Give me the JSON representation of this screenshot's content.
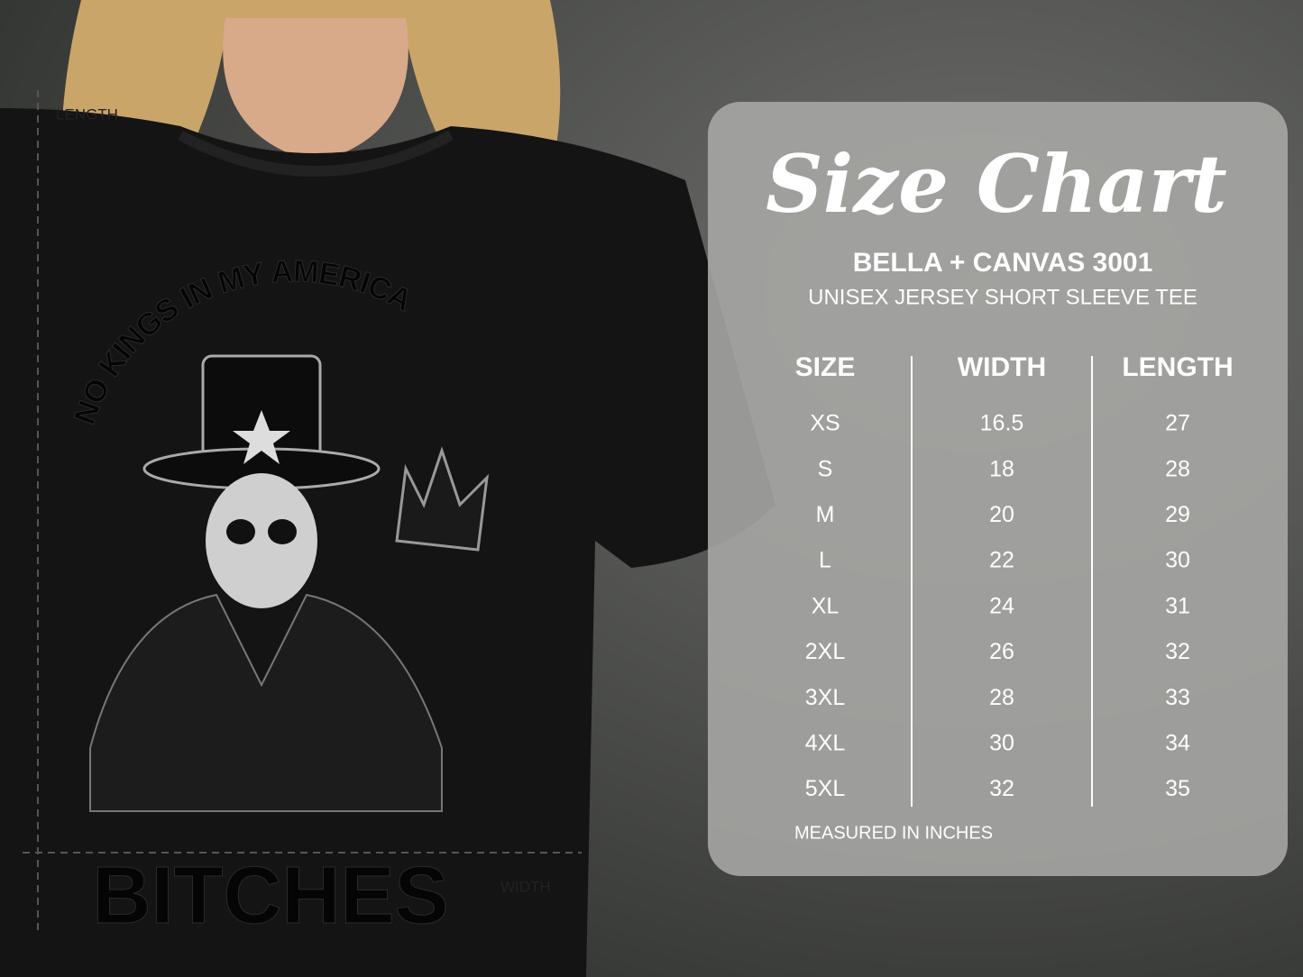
{
  "shirt": {
    "length_label": "LENGTH",
    "width_label": "WIDTH",
    "print_top": "NO KINGS IN MY AMERICA",
    "print_bottom": "BITCHES"
  },
  "size_chart": {
    "title": "Size Chart",
    "product": "BELLA + CANVAS 3001",
    "subtitle": "UNISEX JERSEY SHORT SLEEVE TEE",
    "header": [
      "SIZE",
      "WIDTH",
      "LENGTH"
    ],
    "rows": [
      [
        "XS",
        16.5,
        27
      ],
      [
        "S",
        18,
        28
      ],
      [
        "M",
        20,
        29
      ],
      [
        "L",
        22,
        30
      ],
      [
        "XL",
        24,
        31
      ],
      [
        "2XL",
        26,
        32
      ],
      [
        "3XL",
        28,
        33
      ],
      [
        "4XL",
        30,
        34
      ],
      [
        "5XL",
        32,
        35
      ]
    ],
    "note": "MEASURED IN INCHES"
  }
}
